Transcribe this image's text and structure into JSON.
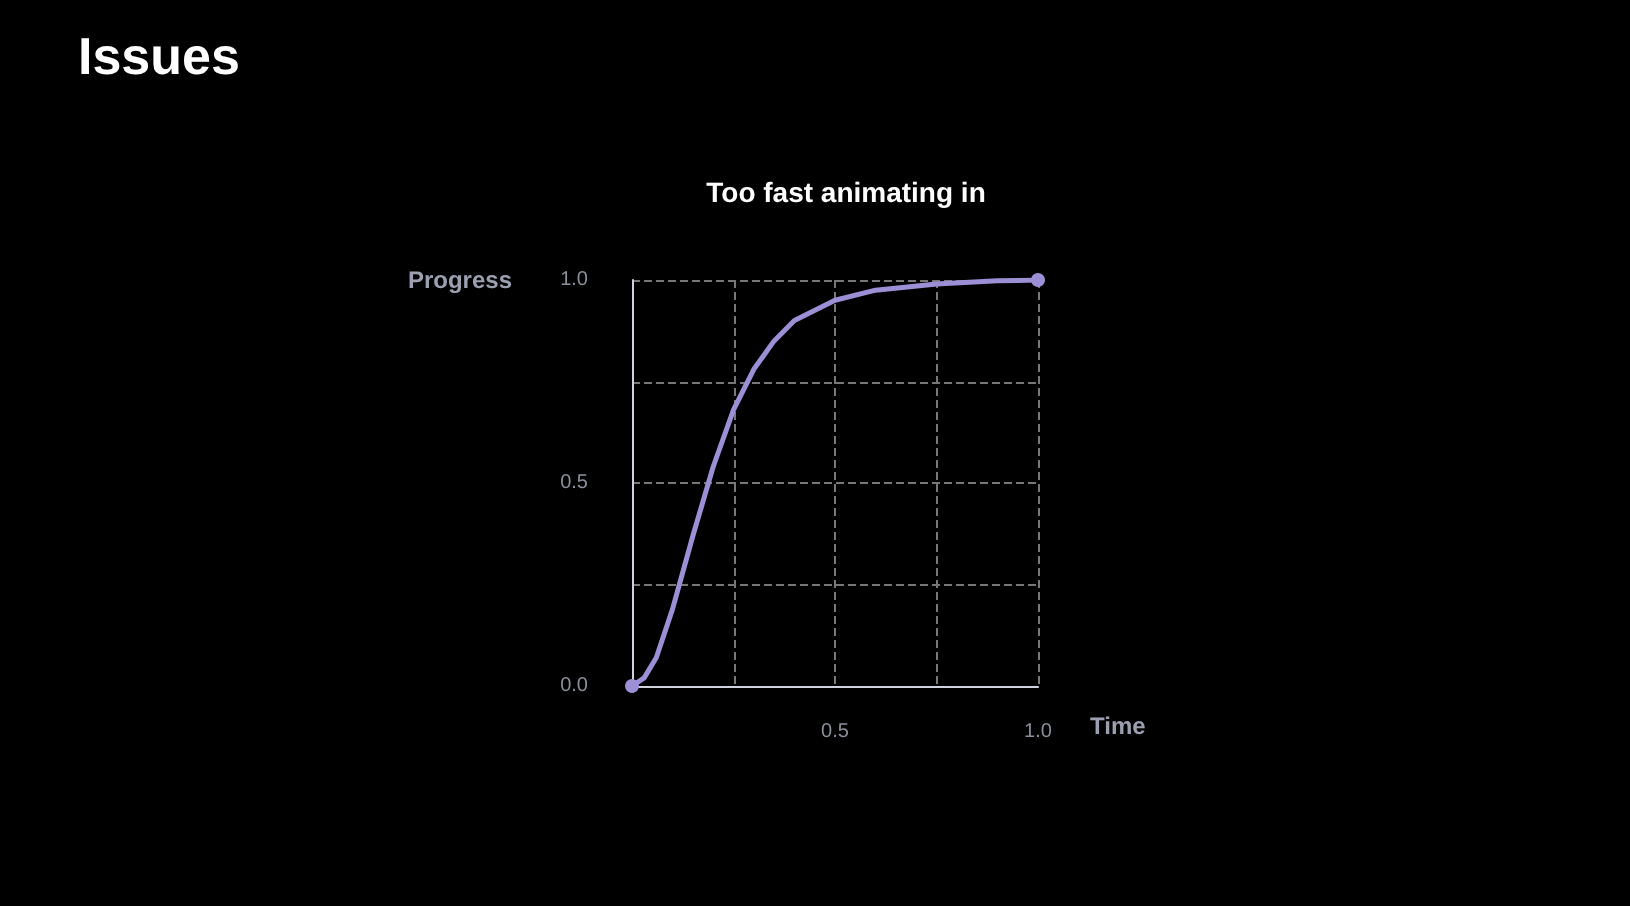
{
  "chart_data": {
    "type": "line",
    "title": "Issues",
    "subtitle": "Too fast animating in",
    "xlabel": "Time",
    "ylabel": "Progress",
    "x": [
      0,
      0.03,
      0.06,
      0.1,
      0.15,
      0.2,
      0.25,
      0.3,
      0.35,
      0.4,
      0.5,
      0.6,
      0.75,
      0.9,
      1.0
    ],
    "series": [
      {
        "color": "#9d8fd6",
        "values": [
          0,
          0.02,
          0.07,
          0.19,
          0.37,
          0.54,
          0.68,
          0.78,
          0.85,
          0.9,
          0.95,
          0.975,
          0.99,
          0.998,
          1.0
        ]
      }
    ],
    "xlim": [
      0,
      1
    ],
    "ylim": [
      0,
      1
    ],
    "xticks": [
      {
        "value": 0,
        "label": null
      },
      {
        "value": 0.25,
        "label": null
      },
      {
        "value": 0.5,
        "label": "0.5"
      },
      {
        "value": 0.75,
        "label": null
      },
      {
        "value": 1,
        "label": "1.0"
      }
    ],
    "yticks": [
      {
        "value": 0,
        "label": "0.0"
      },
      {
        "value": 0.25,
        "label": null
      },
      {
        "value": 0.5,
        "label": "0.5"
      },
      {
        "value": 0.75,
        "label": null
      },
      {
        "value": 1,
        "label": "1.0"
      }
    ],
    "grid": true,
    "line_style": "solid"
  }
}
